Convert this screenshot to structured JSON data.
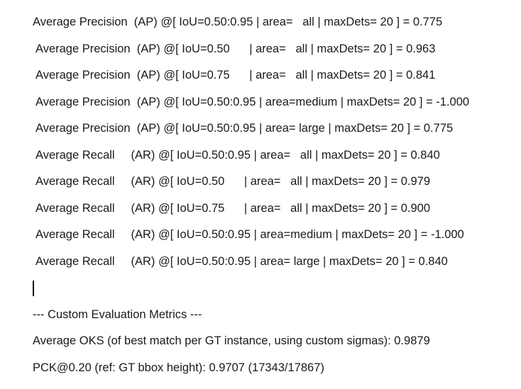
{
  "document": {
    "coco_metrics": [
      {
        "text": "Average Precision  (AP) @[ IoU=0.50:0.95 | area=   all | maxDets= 20 ] = 0.775"
      },
      {
        "text": "Average Precision  (AP) @[ IoU=0.50      | area=   all | maxDets= 20 ] = 0.963"
      },
      {
        "text": "Average Precision  (AP) @[ IoU=0.75      | area=   all | maxDets= 20 ] = 0.841"
      },
      {
        "text": "Average Precision  (AP) @[ IoU=0.50:0.95 | area=medium | maxDets= 20 ] = -1.000"
      },
      {
        "text": "Average Precision  (AP) @[ IoU=0.50:0.95 | area= large | maxDets= 20 ] = 0.775"
      },
      {
        "text": "Average Recall     (AR) @[ IoU=0.50:0.95 | area=   all | maxDets= 20 ] = 0.840"
      },
      {
        "text": "Average Recall     (AR) @[ IoU=0.50      | area=   all | maxDets= 20 ] = 0.979"
      },
      {
        "text": "Average Recall     (AR) @[ IoU=0.75      | area=   all | maxDets= 20 ] = 0.900"
      },
      {
        "text": "Average Recall     (AR) @[ IoU=0.50:0.95 | area=medium | maxDets= 20 ] = -1.000"
      },
      {
        "text": "Average Recall     (AR) @[ IoU=0.50:0.95 | area= large | maxDets= 20 ] = 0.840"
      }
    ],
    "custom_header": "--- Custom Evaluation Metrics ---",
    "oks_line": "Average OKS (of best match per GT instance, using custom sigmas): 0.9879",
    "pck_line": "PCK@0.20 (ref: GT bbox height): 0.9707 (17343/17867)"
  }
}
